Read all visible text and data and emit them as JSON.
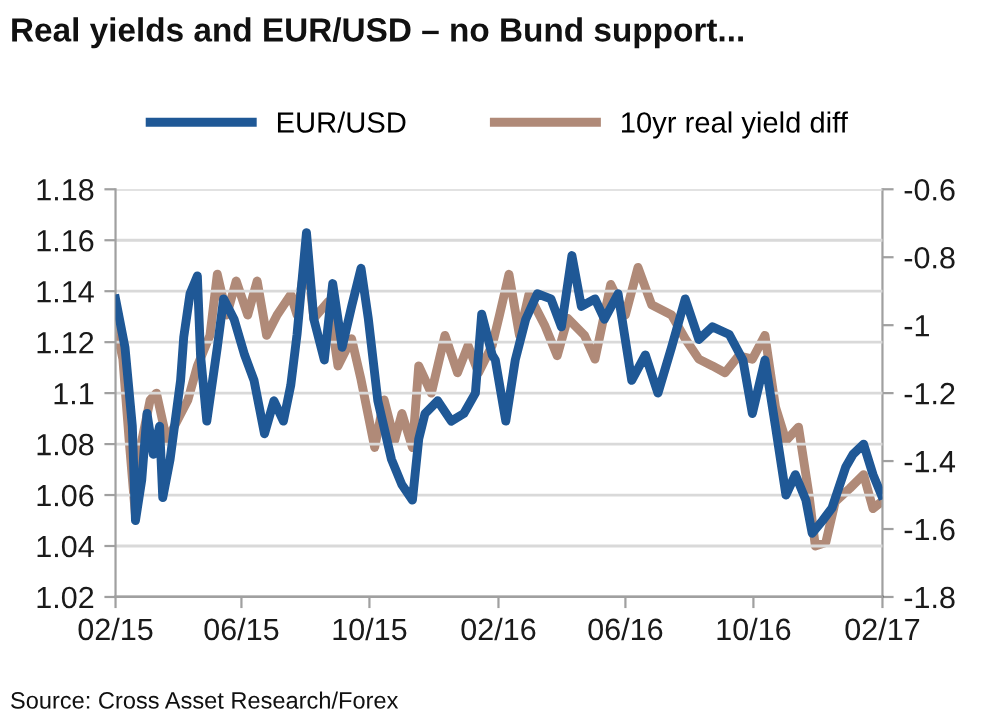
{
  "chart_data": {
    "type": "line",
    "title": "Real yields and EUR/USD – no Bund support...",
    "annotations": [
      "Source: Cross Asset Research/Forex"
    ],
    "xlim": [
      "2015-02-01",
      "2017-02-01"
    ],
    "xticks": [
      {
        "value": "2015-02-01",
        "label": "02/15"
      },
      {
        "value": "2015-06-01",
        "label": "06/15"
      },
      {
        "value": "2015-10-01",
        "label": "10/15"
      },
      {
        "value": "2016-02-01",
        "label": "02/16"
      },
      {
        "value": "2016-06-01",
        "label": "06/16"
      },
      {
        "value": "2016-10-01",
        "label": "10/16"
      },
      {
        "value": "2017-02-01",
        "label": "02/17"
      }
    ],
    "ylim": [
      1.02,
      1.18
    ],
    "yticks": [
      1.02,
      1.04,
      1.06,
      1.08,
      1.1,
      1.12,
      1.14,
      1.16,
      1.18
    ],
    "y2lim": [
      -1.8,
      -0.6
    ],
    "y2ticks": [
      -1.8,
      -1.6,
      -1.4,
      -1.2,
      -1,
      -0.8,
      -0.6
    ],
    "grid": "y",
    "legend": "top",
    "line_style": "solid",
    "marker": "none",
    "series": [
      {
        "name": "EUR/USD",
        "color": "#1f5896",
        "x": [
          "2015-02-01",
          "2015-02-10",
          "2015-02-17",
          "2015-02-20",
          "2015-02-26",
          "2015-03-03",
          "2015-03-09",
          "2015-03-15",
          "2015-03-18",
          "2015-03-25",
          "2015-04-04",
          "2015-04-07",
          "2015-04-13",
          "2015-04-20",
          "2015-04-23",
          "2015-04-29",
          "2015-05-09",
          "2015-05-15",
          "2015-05-25",
          "2015-06-04",
          "2015-06-13",
          "2015-06-23",
          "2015-07-02",
          "2015-07-11",
          "2015-07-18",
          "2015-07-24",
          "2015-08-02",
          "2015-08-09",
          "2015-08-19",
          "2015-08-27",
          "2015-09-05",
          "2015-09-14",
          "2015-09-23",
          "2015-09-30",
          "2015-10-09",
          "2015-10-22",
          "2015-11-01",
          "2015-11-11",
          "2015-11-17",
          "2015-11-23",
          "2015-12-05",
          "2015-12-18",
          "2015-12-30",
          "2016-01-10",
          "2016-01-16",
          "2016-01-26",
          "2016-01-29",
          "2016-02-08",
          "2016-02-17",
          "2016-02-27",
          "2016-03-09",
          "2016-03-22",
          "2016-04-01",
          "2016-04-11",
          "2016-04-20",
          "2016-05-03",
          "2016-05-12",
          "2016-05-25",
          "2016-06-07",
          "2016-06-20",
          "2016-07-02",
          "2016-07-15",
          "2016-07-28",
          "2016-08-10",
          "2016-08-23",
          "2016-09-08",
          "2016-09-21",
          "2016-09-30",
          "2016-10-12",
          "2016-10-22",
          "2016-11-01",
          "2016-11-10",
          "2016-11-20",
          "2016-11-26",
          "2016-12-06",
          "2016-12-15",
          "2016-12-28",
          "2017-01-04",
          "2017-01-14",
          "2017-01-23",
          "2017-01-31"
        ],
        "values": [
          1.137,
          1.118,
          1.087,
          1.05,
          1.066,
          1.092,
          1.076,
          1.087,
          1.059,
          1.074,
          1.105,
          1.122,
          1.139,
          1.146,
          1.115,
          1.089,
          1.118,
          1.137,
          1.129,
          1.115,
          1.105,
          1.084,
          1.097,
          1.089,
          1.103,
          1.123,
          1.163,
          1.129,
          1.113,
          1.143,
          1.118,
          1.134,
          1.149,
          1.129,
          1.097,
          1.074,
          1.064,
          1.058,
          1.082,
          1.092,
          1.097,
          1.089,
          1.092,
          1.1,
          1.131,
          1.115,
          1.113,
          1.089,
          1.113,
          1.129,
          1.139,
          1.137,
          1.126,
          1.154,
          1.134,
          1.137,
          1.129,
          1.139,
          1.105,
          1.115,
          1.1,
          1.118,
          1.137,
          1.121,
          1.126,
          1.123,
          1.113,
          1.092,
          1.113,
          1.087,
          1.06,
          1.068,
          1.058,
          1.045,
          1.05,
          1.055,
          1.071,
          1.076,
          1.08,
          1.068,
          1.06
        ]
      },
      {
        "name": "10yr real yield diff",
        "color": "#b08a78",
        "axis": "y2",
        "x": [
          "2015-02-01",
          "2015-02-08",
          "2015-02-14",
          "2015-02-20",
          "2015-02-26",
          "2015-03-06",
          "2015-03-12",
          "2015-03-22",
          "2015-04-01",
          "2015-04-11",
          "2015-04-20",
          "2015-05-02",
          "2015-05-09",
          "2015-05-18",
          "2015-05-27",
          "2015-06-07",
          "2015-06-16",
          "2015-06-25",
          "2015-07-05",
          "2015-07-18",
          "2015-07-24",
          "2015-08-02",
          "2015-08-09",
          "2015-08-23",
          "2015-09-01",
          "2015-09-14",
          "2015-09-23",
          "2015-10-06",
          "2015-10-15",
          "2015-10-25",
          "2015-11-01",
          "2015-11-11",
          "2015-11-17",
          "2015-11-29",
          "2015-12-12",
          "2015-12-24",
          "2016-01-03",
          "2016-01-13",
          "2016-01-26",
          "2016-02-02",
          "2016-02-11",
          "2016-02-21",
          "2016-03-01",
          "2016-03-16",
          "2016-03-28",
          "2016-04-07",
          "2016-04-23",
          "2016-05-03",
          "2016-05-18",
          "2016-06-01",
          "2016-06-13",
          "2016-06-26",
          "2016-07-15",
          "2016-07-28",
          "2016-08-10",
          "2016-08-23",
          "2016-09-04",
          "2016-09-17",
          "2016-09-30",
          "2016-10-12",
          "2016-10-22",
          "2016-11-01",
          "2016-11-13",
          "2016-11-23",
          "2016-11-29",
          "2016-12-09",
          "2016-12-18",
          "2017-01-01",
          "2017-01-14",
          "2017-01-23",
          "2017-01-31"
        ],
        "values": [
          -1.0,
          -1.1,
          -1.34,
          -1.56,
          -1.34,
          -1.22,
          -1.2,
          -1.34,
          -1.28,
          -1.22,
          -1.12,
          -1.03,
          -0.85,
          -0.97,
          -0.87,
          -0.97,
          -0.87,
          -1.03,
          -0.97,
          -0.91,
          -0.97,
          -0.79,
          -0.98,
          -0.93,
          -1.12,
          -1.04,
          -1.16,
          -1.36,
          -1.22,
          -1.34,
          -1.26,
          -1.36,
          -1.12,
          -1.2,
          -1.03,
          -1.14,
          -1.06,
          -1.14,
          -1.06,
          -0.97,
          -0.85,
          -1.03,
          -0.91,
          -1.0,
          -1.09,
          -0.98,
          -1.03,
          -1.1,
          -0.88,
          -0.97,
          -0.83,
          -0.94,
          -0.97,
          -1.04,
          -1.1,
          -1.12,
          -1.14,
          -1.09,
          -1.1,
          -1.03,
          -1.24,
          -1.34,
          -1.3,
          -1.5,
          -1.65,
          -1.64,
          -1.52,
          -1.48,
          -1.44,
          -1.54,
          -1.52
        ]
      }
    ]
  }
}
